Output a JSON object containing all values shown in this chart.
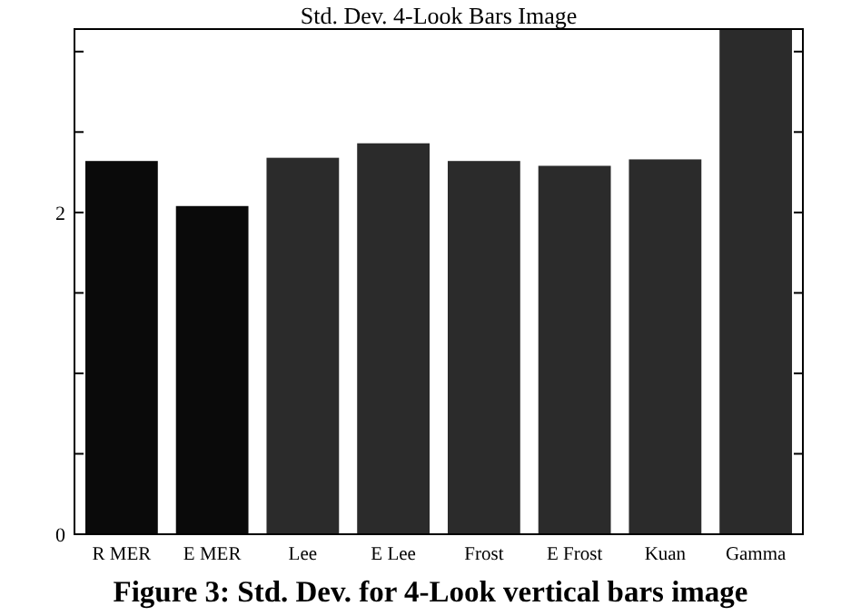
{
  "chart_data": {
    "type": "bar",
    "title": "Std. Dev. 4-Look Bars Image",
    "categories": [
      "R MER",
      "E MER",
      "Lee",
      "E Lee",
      "Frost",
      "E Frost",
      "Kuan",
      "Gamma"
    ],
    "values": [
      2.32,
      2.04,
      2.34,
      2.43,
      2.32,
      2.29,
      2.33,
      3.14
    ],
    "colors": [
      "#0a0a0a",
      "#0a0a0a",
      "#2b2b2b",
      "#2b2b2b",
      "#2b2b2b",
      "#2b2b2b",
      "#2b2b2b",
      "#2b2b2b"
    ],
    "ylim": [
      0,
      3.14
    ],
    "yticks": [
      0,
      {
        "value": 0.5,
        "label": null
      },
      {
        "value": 1,
        "label": null
      },
      {
        "value": 1.5,
        "label": null
      },
      2,
      {
        "value": 2.5,
        "label": null
      },
      {
        "value": 3,
        "label": null
      }
    ],
    "annotations": [
      "Figure 3: Std. Dev. for 4-Look vertical bars image"
    ]
  }
}
